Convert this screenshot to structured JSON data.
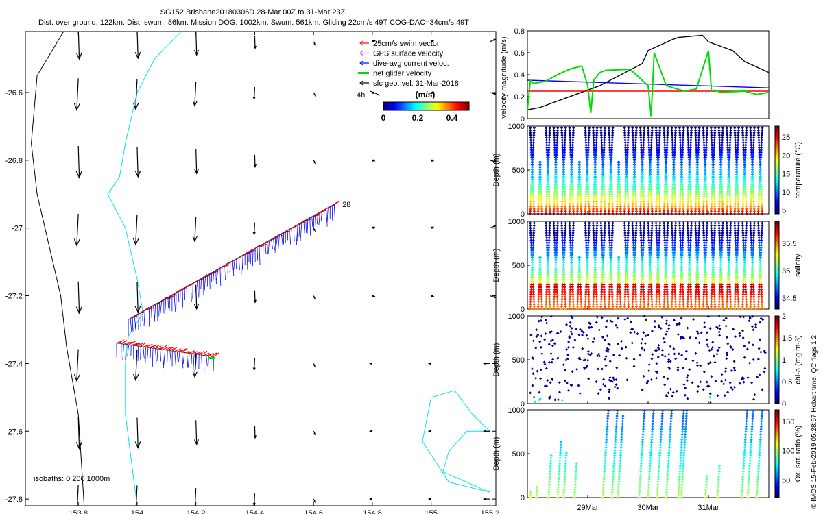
{
  "header": {
    "title": "SG152 Brisbane20180306D 28-Mar 00Z to 31-Mar 23Z.",
    "subtitle": "Dist. over ground: 122km. Dist. swum: 86km. Mission DOG: 1002km. Swum: 561km. Gliding 22cm/s 49T COG-DAC=34cm/s 49T"
  },
  "credit": "© IMOS 15-Feb-2019 05:28:57 Hobart time. QC flags 1  2",
  "colors": {
    "swim": "#ff0000",
    "gps": "#ff00ff",
    "dac": "#0000ff",
    "net": "#00dd00",
    "geo": "#000000",
    "coast": "#00e5ee",
    "isobath": "#000000"
  },
  "chart_data": [
    {
      "type": "map",
      "name": "glider-track-map",
      "xlim": [
        153.62,
        155.22
      ],
      "ylim": [
        -27.82,
        -26.42
      ],
      "xticks": [
        153.8,
        154,
        154.2,
        154.4,
        154.6,
        154.8,
        155,
        155.2
      ],
      "xtick_labels": [
        "153.8",
        "154",
        "154.2",
        "154.4",
        "154.6",
        "154.8",
        "155",
        "155.2"
      ],
      "yticks": [
        -26.6,
        -26.8,
        -27,
        -27.2,
        -27.4,
        -27.6,
        -27.8
      ],
      "ytick_labels": [
        "-26.6",
        "-26.8",
        "-27",
        "-27.2",
        "-27.4",
        "-27.6",
        "-27.8"
      ],
      "legend": [
        {
          "label": "25cm/s swim vector",
          "color": "#ff0000"
        },
        {
          "label": "GPS surface velocity",
          "color": "#ff00ff"
        },
        {
          "label": "dive-avg current veloc.",
          "color": "#0000ff"
        },
        {
          "label": "net glider velocity",
          "color": "#00dd00"
        },
        {
          "label": "sfc geo. vel. 31-Mar-2018",
          "color": "#000000"
        }
      ],
      "legend_position": "top-right",
      "scale_label": "4h",
      "colorbar": {
        "title": "(m/s)",
        "range": [
          0,
          0.5
        ],
        "ticks": [
          0,
          0.2,
          0.4
        ],
        "tick_labels": [
          "0",
          "0.2",
          "0.4"
        ]
      },
      "isobath_label": "isobaths: 0   200  1000m",
      "track_label": "28",
      "geo_arrow_columns": [
        153.8,
        154.0,
        154.2,
        154.4,
        154.6,
        154.8,
        155.0,
        155.2
      ],
      "geo_arrow_rows": [
        -26.45,
        -26.6,
        -26.8,
        -27.0,
        -27.2,
        -27.4,
        -27.6,
        -27.8
      ],
      "geo_arrow_speeds_column": [
        0.42,
        0.4,
        0.32,
        0.16,
        0.05,
        0.03,
        0.03,
        0.08
      ],
      "track_segments": [
        {
          "from": [
            153.93,
            -27.34
          ],
          "to": [
            154.26,
            -27.38
          ]
        },
        {
          "from": [
            153.97,
            -27.27
          ],
          "to": [
            154.36,
            -27.08
          ]
        },
        {
          "from": [
            154.36,
            -27.08
          ],
          "to": [
            154.67,
            -26.93
          ]
        }
      ],
      "coastline_0m": [
        [
          154.15,
          -26.42
        ],
        [
          154.06,
          -26.5
        ],
        [
          154.0,
          -26.6
        ],
        [
          153.96,
          -26.75
        ],
        [
          153.94,
          -26.85
        ],
        [
          153.9,
          -26.9
        ],
        [
          153.96,
          -27.0
        ],
        [
          154.0,
          -27.15
        ],
        [
          154.02,
          -27.25
        ],
        [
          153.97,
          -27.32
        ],
        [
          153.96,
          -27.4
        ],
        [
          153.96,
          -27.55
        ],
        [
          154.0,
          -27.82
        ]
      ],
      "isobath_200m": [
        [
          153.75,
          -26.42
        ],
        [
          153.66,
          -26.55
        ],
        [
          153.64,
          -26.75
        ],
        [
          153.66,
          -26.9
        ],
        [
          153.7,
          -27.05
        ],
        [
          153.74,
          -27.2
        ],
        [
          153.76,
          -27.35
        ],
        [
          153.8,
          -27.55
        ],
        [
          153.82,
          -27.82
        ]
      ],
      "island_contour": [
        [
          155.0,
          -27.5
        ],
        [
          155.08,
          -27.48
        ],
        [
          155.14,
          -27.55
        ],
        [
          155.2,
          -27.6
        ],
        [
          155.12,
          -27.6
        ],
        [
          155.06,
          -27.66
        ],
        [
          155.04,
          -27.72
        ],
        [
          155.2,
          -27.78
        ],
        [
          155.06,
          -27.75
        ],
        [
          154.97,
          -27.63
        ],
        [
          155.0,
          -27.5
        ]
      ]
    },
    {
      "type": "line",
      "name": "velocity-magnitude-panel",
      "ylabel": "velocity magnitude (m/s)",
      "ylim": [
        0,
        0.8
      ],
      "yticks": [
        0,
        0.2,
        0.4,
        0.6,
        0.8
      ],
      "ytick_labels": [
        "0",
        "0.2",
        "0.4",
        "0.6",
        "0.8"
      ],
      "x_range_days": [
        0,
        4
      ],
      "series": [
        {
          "name": "sfc geo. vel.",
          "color": "#000000",
          "x": [
            0,
            0.2,
            0.8,
            1.2,
            1.9,
            2.0,
            2.4,
            2.5,
            2.9,
            3.0,
            3.4,
            3.6,
            4.0
          ],
          "y": [
            0.08,
            0.1,
            0.22,
            0.3,
            0.5,
            0.62,
            0.72,
            0.74,
            0.76,
            0.7,
            0.62,
            0.52,
            0.42
          ]
        },
        {
          "name": "dive-avg current veloc.",
          "color": "#0000ff",
          "x": [
            0,
            4
          ],
          "y": [
            0.35,
            0.28
          ]
        },
        {
          "name": "swim vector",
          "color": "#ff0000",
          "x": [
            0,
            4
          ],
          "y": [
            0.25,
            0.25
          ]
        },
        {
          "name": "net glider velocity",
          "color": "#00dd00",
          "x": [
            0,
            0.05,
            0.1,
            0.3,
            0.5,
            0.7,
            0.9,
            1.0,
            1.05,
            1.1,
            1.2,
            1.3,
            1.7,
            2.0,
            2.05,
            2.1,
            2.3,
            2.6,
            2.8,
            3.0,
            3.05,
            3.1,
            3.2,
            3.6,
            3.8,
            4.0
          ],
          "y": [
            0.08,
            0.35,
            0.32,
            0.34,
            0.4,
            0.45,
            0.48,
            0.3,
            0.05,
            0.35,
            0.42,
            0.44,
            0.45,
            0.3,
            0.02,
            0.6,
            0.3,
            0.25,
            0.27,
            0.62,
            0.25,
            0.26,
            0.24,
            0.25,
            0.22,
            0.24
          ]
        }
      ]
    },
    {
      "type": "scatter",
      "name": "temperature-section",
      "ylabel": "Depth (m)",
      "ylim": [
        1000,
        0
      ],
      "yticks": [
        0,
        500,
        1000
      ],
      "ytick_labels": [
        "0",
        "500",
        "1000"
      ],
      "colorbar_label": "temperature (°C)",
      "color_range": [
        4,
        28
      ],
      "colorbar_ticks": [
        5,
        10,
        15,
        20,
        25
      ],
      "colorbar_tick_labels": [
        "5",
        "10",
        "15",
        "20",
        "25"
      ],
      "dives": 30,
      "max_depth": 1000
    },
    {
      "type": "scatter",
      "name": "salinity-section",
      "ylabel": "Depth (m)",
      "ylim": [
        1000,
        0
      ],
      "yticks": [
        0,
        500,
        1000
      ],
      "ytick_labels": [
        "0",
        "500",
        "1000"
      ],
      "colorbar_label": "salinity",
      "color_range": [
        34.3,
        35.9
      ],
      "colorbar_ticks": [
        34.5,
        35,
        35.5
      ],
      "colorbar_tick_labels": [
        "34.5",
        "35",
        "35.5"
      ],
      "dives": 30,
      "max_depth": 1000
    },
    {
      "type": "scatter",
      "name": "chlorophyll-section",
      "ylabel": "Depth (m)",
      "ylim": [
        1000,
        0
      ],
      "yticks": [
        0,
        500,
        1000
      ],
      "ytick_labels": [
        "0",
        "500",
        "1000"
      ],
      "colorbar_label": "chl-a (mg m-3)",
      "color_range": [
        0,
        2
      ],
      "colorbar_ticks": [
        0,
        0.5,
        1,
        1.5,
        2
      ],
      "colorbar_tick_labels": [
        "0",
        "0.5",
        "1",
        "1.5",
        "2"
      ],
      "points": 420
    },
    {
      "type": "scatter",
      "name": "oxygen-section",
      "ylabel": "Depth (m)",
      "ylim": [
        1000,
        0
      ],
      "yticks": [
        0,
        500,
        1000
      ],
      "ytick_labels": [
        "0",
        "500",
        "1000"
      ],
      "colorbar_label": "Ox. sat. ratio (%)",
      "color_range": [
        20,
        170
      ],
      "colorbar_ticks": [
        50,
        100,
        150
      ],
      "colorbar_tick_labels": [
        "50",
        "100",
        "150"
      ],
      "xtick_days": [
        1,
        2,
        3
      ],
      "xtick_labels": [
        "29Mar",
        "30Mar",
        "31Mar"
      ]
    }
  ]
}
